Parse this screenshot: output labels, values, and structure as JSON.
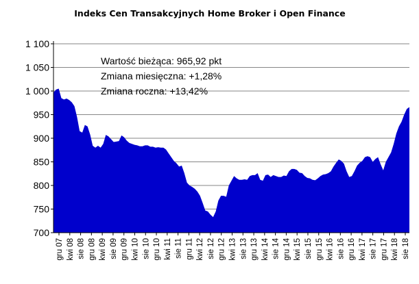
{
  "chart_data": {
    "type": "area",
    "title": "Indeks Cen Transakcyjnych Home Broker i Open Finance",
    "xlabel": "",
    "ylabel": "",
    "ylim": [
      700,
      1100
    ],
    "yticks": [
      700,
      750,
      800,
      850,
      900,
      950,
      1000,
      1050,
      1100
    ],
    "ytick_labels": [
      "700",
      "750",
      "800",
      "850",
      "900",
      "950",
      "1 000",
      "1 050",
      "1 100"
    ],
    "xtick_labels": [
      "gru 07",
      "kwi 08",
      "sie 08",
      "gru 08",
      "kwi 09",
      "sie 09",
      "gru 09",
      "kwi 10",
      "sie 10",
      "gru 10",
      "kwi 11",
      "sie 11",
      "gru 11",
      "kwi 12",
      "sie 12",
      "gru 12",
      "kwi 13",
      "sie 13",
      "gru 13",
      "kwi 14",
      "sie 14",
      "gru 14",
      "kwi 15",
      "sie 15",
      "gru 15",
      "kwi 16",
      "sie 16",
      "gru 16",
      "kwi 17",
      "sie 17",
      "gru 17",
      "kwi 18",
      "sie 18"
    ],
    "grid": "horizontal",
    "fill_color": "#0000CC",
    "series": [
      {
        "values": [
          997,
          1003,
          1005,
          985,
          982,
          984,
          981,
          976,
          968,
          945,
          915,
          912,
          928,
          925,
          908,
          884,
          880,
          884,
          880,
          888,
          907,
          904,
          898,
          892,
          893,
          894,
          906,
          902,
          895,
          890,
          888,
          886,
          885,
          883,
          883,
          885,
          885,
          882,
          882,
          880,
          881,
          880,
          880,
          876,
          868,
          860,
          852,
          847,
          840,
          842,
          826,
          806,
          800,
          797,
          793,
          787,
          778,
          763,
          747,
          745,
          738,
          733,
          745,
          768,
          778,
          778,
          776,
          800,
          810,
          820,
          815,
          812,
          812,
          813,
          812,
          820,
          822,
          822,
          826,
          812,
          810,
          822,
          823,
          818,
          822,
          820,
          818,
          818,
          821,
          820,
          830,
          835,
          835,
          833,
          827,
          826,
          820,
          816,
          815,
          812,
          811,
          815,
          820,
          823,
          824,
          826,
          830,
          840,
          848,
          855,
          852,
          846,
          830,
          818,
          820,
          830,
          842,
          848,
          852,
          860,
          862,
          860,
          850,
          856,
          860,
          845,
          832,
          850,
          860,
          870,
          888,
          910,
          925,
          935,
          950,
          962,
          966
        ]
      }
    ],
    "annotations": [
      "Wartość bieżąca: 965,92 pkt",
      "Zmiana miesięczna: +1,28%",
      "Zmiana roczna: +13,42%"
    ]
  }
}
